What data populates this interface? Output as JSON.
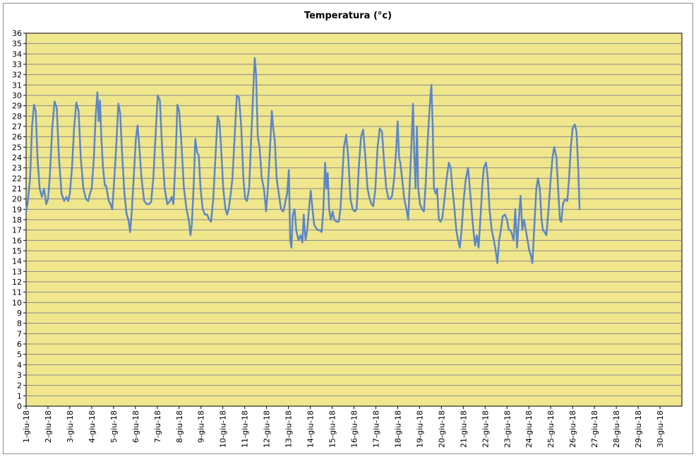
{
  "chart_data": {
    "type": "line",
    "title": "Temperatura (°c)",
    "xlabel": "",
    "ylabel": "",
    "ylim": [
      0,
      36
    ],
    "y_ticks": [
      0,
      1,
      2,
      3,
      4,
      5,
      6,
      7,
      8,
      9,
      10,
      11,
      12,
      13,
      14,
      15,
      16,
      17,
      18,
      19,
      20,
      21,
      22,
      23,
      24,
      25,
      26,
      27,
      28,
      29,
      30,
      31,
      32,
      33,
      34,
      35,
      36
    ],
    "x_ticks": [
      "1-giu-18",
      "2-giu-18",
      "3-giu-18",
      "4-giu-18",
      "5-giu-18",
      "6-giu-18",
      "7-giu-18",
      "8-giu-18",
      "9-giu-18",
      "10-giu-18",
      "11-giu-18",
      "12-giu-18",
      "13-giu-18",
      "14-giu-18",
      "15-giu-18",
      "16-giu-18",
      "17-giu-18",
      "18-giu-18",
      "19-giu-18",
      "20-giu-18",
      "21-giu-18",
      "22-giu-18",
      "23-giu-18",
      "24-giu-18",
      "25-giu-18",
      "26-giu-18",
      "27-giu-18",
      "28-giu-18",
      "29-giu-18",
      "30-giu-18"
    ],
    "grid": true,
    "colors": {
      "plot_background": "#f0e68c",
      "grid": "#8a8a8a",
      "line": "#5b87c8"
    },
    "series": [
      {
        "values": [
          [
            1.0,
            18.8
          ],
          [
            1.08,
            19.8
          ],
          [
            1.18,
            22
          ],
          [
            1.27,
            27
          ],
          [
            1.36,
            29.1
          ],
          [
            1.44,
            28.5
          ],
          [
            1.52,
            24
          ],
          [
            1.62,
            21
          ],
          [
            1.72,
            20.2
          ],
          [
            1.82,
            21
          ],
          [
            1.92,
            19.5
          ],
          [
            2.0,
            20
          ],
          [
            2.08,
            22
          ],
          [
            2.2,
            27
          ],
          [
            2.3,
            29.4
          ],
          [
            2.4,
            28.8
          ],
          [
            2.5,
            24
          ],
          [
            2.62,
            20.5
          ],
          [
            2.74,
            19.8
          ],
          [
            2.84,
            20.2
          ],
          [
            2.92,
            19.8
          ],
          [
            3.0,
            20.5
          ],
          [
            3.1,
            23
          ],
          [
            3.2,
            27
          ],
          [
            3.3,
            29.3
          ],
          [
            3.4,
            28.5
          ],
          [
            3.5,
            24
          ],
          [
            3.62,
            21
          ],
          [
            3.74,
            20
          ],
          [
            3.84,
            19.8
          ],
          [
            3.92,
            20.5
          ],
          [
            4.0,
            21
          ],
          [
            4.1,
            24
          ],
          [
            4.18,
            28
          ],
          [
            4.26,
            30.3
          ],
          [
            4.32,
            27.5
          ],
          [
            4.38,
            29.5
          ],
          [
            4.44,
            26
          ],
          [
            4.52,
            23
          ],
          [
            4.6,
            21.3
          ],
          [
            4.66,
            21.3
          ],
          [
            4.78,
            19.8
          ],
          [
            4.86,
            19.5
          ],
          [
            4.94,
            19
          ],
          [
            5.02,
            21.5
          ],
          [
            5.12,
            25
          ],
          [
            5.22,
            29.2
          ],
          [
            5.3,
            28.3
          ],
          [
            5.4,
            24
          ],
          [
            5.5,
            20.5
          ],
          [
            5.6,
            18.5
          ],
          [
            5.68,
            18
          ],
          [
            5.76,
            16.8
          ],
          [
            5.84,
            19
          ],
          [
            5.92,
            22
          ],
          [
            6.02,
            25.8
          ],
          [
            6.1,
            27.1
          ],
          [
            6.18,
            25
          ],
          [
            6.28,
            22
          ],
          [
            6.4,
            19.8
          ],
          [
            6.52,
            19.5
          ],
          [
            6.62,
            19.5
          ],
          [
            6.72,
            19.7
          ],
          [
            6.82,
            22
          ],
          [
            6.92,
            26
          ],
          [
            7.02,
            30
          ],
          [
            7.12,
            29.5
          ],
          [
            7.22,
            25
          ],
          [
            7.34,
            21
          ],
          [
            7.46,
            19.5
          ],
          [
            7.58,
            19.8
          ],
          [
            7.66,
            20.2
          ],
          [
            7.74,
            19.5
          ],
          [
            7.84,
            24
          ],
          [
            7.92,
            29.1
          ],
          [
            8.0,
            28.5
          ],
          [
            8.1,
            25.5
          ],
          [
            8.22,
            21
          ],
          [
            8.34,
            19
          ],
          [
            8.44,
            18
          ],
          [
            8.52,
            16.5
          ],
          [
            8.58,
            17.5
          ],
          [
            8.66,
            21
          ],
          [
            8.74,
            25.8
          ],
          [
            8.82,
            24.5
          ],
          [
            8.9,
            24.2
          ],
          [
            8.98,
            21
          ],
          [
            9.08,
            19
          ],
          [
            9.18,
            18.5
          ],
          [
            9.28,
            18.5
          ],
          [
            9.38,
            18
          ],
          [
            9.46,
            17.8
          ],
          [
            9.56,
            20
          ],
          [
            9.66,
            24
          ],
          [
            9.76,
            28
          ],
          [
            9.84,
            27.5
          ],
          [
            9.92,
            25
          ],
          [
            10.02,
            21
          ],
          [
            10.12,
            19
          ],
          [
            10.2,
            18.5
          ],
          [
            10.28,
            19.2
          ],
          [
            10.36,
            20.5
          ],
          [
            10.44,
            22
          ],
          [
            10.54,
            26
          ],
          [
            10.64,
            30
          ],
          [
            10.74,
            29.8
          ],
          [
            10.84,
            27
          ],
          [
            10.94,
            22
          ],
          [
            11.02,
            20
          ],
          [
            11.1,
            19.8
          ],
          [
            11.2,
            21
          ],
          [
            11.3,
            26
          ],
          [
            11.4,
            31
          ],
          [
            11.46,
            33.6
          ],
          [
            11.52,
            32
          ],
          [
            11.6,
            26
          ],
          [
            11.68,
            25
          ],
          [
            11.78,
            22
          ],
          [
            11.88,
            21
          ],
          [
            11.98,
            18.8
          ],
          [
            12.06,
            21
          ],
          [
            12.16,
            25
          ],
          [
            12.24,
            28.5
          ],
          [
            12.3,
            27
          ],
          [
            12.38,
            25.5
          ],
          [
            12.46,
            22
          ],
          [
            12.56,
            20.5
          ],
          [
            12.66,
            19
          ],
          [
            12.76,
            18.8
          ],
          [
            12.84,
            19.5
          ],
          [
            12.94,
            20.5
          ],
          [
            13.02,
            22.8
          ],
          [
            13.08,
            16
          ],
          [
            13.14,
            15.3
          ],
          [
            13.2,
            18.5
          ],
          [
            13.28,
            19
          ],
          [
            13.36,
            17
          ],
          [
            13.46,
            16
          ],
          [
            13.56,
            16.5
          ],
          [
            13.64,
            15.8
          ],
          [
            13.7,
            18.5
          ],
          [
            13.78,
            16
          ],
          [
            13.86,
            17
          ],
          [
            13.94,
            19
          ],
          [
            14.02,
            20.8
          ],
          [
            14.1,
            19
          ],
          [
            14.18,
            17.5
          ],
          [
            14.26,
            17.2
          ],
          [
            14.34,
            17
          ],
          [
            14.44,
            17
          ],
          [
            14.52,
            16.8
          ],
          [
            14.6,
            19
          ],
          [
            14.68,
            23.5
          ],
          [
            14.74,
            21
          ],
          [
            14.8,
            22.5
          ],
          [
            14.86,
            19
          ],
          [
            14.94,
            18
          ],
          [
            15.02,
            18.8
          ],
          [
            15.1,
            18
          ],
          [
            15.2,
            17.8
          ],
          [
            15.3,
            17.8
          ],
          [
            15.38,
            19
          ],
          [
            15.46,
            22
          ],
          [
            15.54,
            25
          ],
          [
            15.64,
            26.2
          ],
          [
            15.74,
            24
          ],
          [
            15.84,
            20
          ],
          [
            15.94,
            19
          ],
          [
            16.04,
            18.8
          ],
          [
            16.12,
            19
          ],
          [
            16.22,
            23
          ],
          [
            16.32,
            26
          ],
          [
            16.42,
            26.7
          ],
          [
            16.52,
            24
          ],
          [
            16.62,
            21
          ],
          [
            16.72,
            20
          ],
          [
            16.8,
            19.5
          ],
          [
            16.88,
            19.3
          ],
          [
            16.98,
            21
          ],
          [
            17.08,
            25
          ],
          [
            17.18,
            26.8
          ],
          [
            17.28,
            26.5
          ],
          [
            17.38,
            23.5
          ],
          [
            17.48,
            21
          ],
          [
            17.58,
            20
          ],
          [
            17.66,
            20
          ],
          [
            17.74,
            20.3
          ],
          [
            17.84,
            22
          ],
          [
            17.92,
            24.5
          ],
          [
            18.0,
            27.5
          ],
          [
            18.06,
            24
          ],
          [
            18.12,
            23.5
          ],
          [
            18.2,
            22
          ],
          [
            18.3,
            20
          ],
          [
            18.4,
            19
          ],
          [
            18.48,
            18
          ],
          [
            18.56,
            22
          ],
          [
            18.64,
            26
          ],
          [
            18.7,
            29.2
          ],
          [
            18.76,
            24
          ],
          [
            18.82,
            21
          ],
          [
            18.88,
            27
          ],
          [
            18.94,
            21
          ],
          [
            19.02,
            19.5
          ],
          [
            19.12,
            19
          ],
          [
            19.2,
            18.8
          ],
          [
            19.28,
            21.5
          ],
          [
            19.38,
            26
          ],
          [
            19.46,
            28.8
          ],
          [
            19.54,
            31
          ],
          [
            19.6,
            27
          ],
          [
            19.66,
            21
          ],
          [
            19.74,
            20.5
          ],
          [
            19.8,
            21
          ],
          [
            19.88,
            18
          ],
          [
            19.96,
            17.8
          ],
          [
            20.04,
            18.2
          ],
          [
            20.14,
            20
          ],
          [
            20.24,
            22
          ],
          [
            20.34,
            23.5
          ],
          [
            20.42,
            23
          ],
          [
            20.5,
            21
          ],
          [
            20.6,
            19
          ],
          [
            20.68,
            17
          ],
          [
            20.76,
            16
          ],
          [
            20.84,
            15.3
          ],
          [
            20.92,
            17
          ],
          [
            21.02,
            20
          ],
          [
            21.12,
            22
          ],
          [
            21.22,
            23
          ],
          [
            21.3,
            21
          ],
          [
            21.38,
            19
          ],
          [
            21.46,
            17
          ],
          [
            21.54,
            15.5
          ],
          [
            21.62,
            16.5
          ],
          [
            21.7,
            15.3
          ],
          [
            21.78,
            18
          ],
          [
            21.86,
            21
          ],
          [
            21.94,
            23
          ],
          [
            22.04,
            23.5
          ],
          [
            22.12,
            22
          ],
          [
            22.2,
            19
          ],
          [
            22.3,
            17
          ],
          [
            22.4,
            16
          ],
          [
            22.48,
            15
          ],
          [
            22.56,
            13.8
          ],
          [
            22.64,
            16
          ],
          [
            22.72,
            17
          ],
          [
            22.8,
            18.3
          ],
          [
            22.9,
            18.5
          ],
          [
            23.0,
            18
          ],
          [
            23.08,
            17
          ],
          [
            23.16,
            17
          ],
          [
            23.24,
            16.5
          ],
          [
            23.3,
            16
          ],
          [
            23.38,
            19
          ],
          [
            23.46,
            15.3
          ],
          [
            23.54,
            18
          ],
          [
            23.62,
            20.3
          ],
          [
            23.7,
            17
          ],
          [
            23.78,
            18
          ],
          [
            23.86,
            17
          ],
          [
            23.94,
            16
          ],
          [
            24.02,
            15
          ],
          [
            24.1,
            14.5
          ],
          [
            24.16,
            13.8
          ],
          [
            24.24,
            17
          ],
          [
            24.34,
            21
          ],
          [
            24.42,
            22
          ],
          [
            24.5,
            21
          ],
          [
            24.58,
            18
          ],
          [
            24.64,
            17
          ],
          [
            24.72,
            16.8
          ],
          [
            24.8,
            16.5
          ],
          [
            24.9,
            19
          ],
          [
            25.0,
            22
          ],
          [
            25.08,
            24
          ],
          [
            25.16,
            25
          ],
          [
            25.26,
            24
          ],
          [
            25.34,
            21
          ],
          [
            25.42,
            18
          ],
          [
            25.48,
            17.8
          ],
          [
            25.56,
            19.5
          ],
          [
            25.66,
            20
          ],
          [
            25.76,
            19.8
          ],
          [
            25.84,
            22
          ],
          [
            25.92,
            25
          ],
          [
            26.0,
            26.8
          ],
          [
            26.1,
            27.2
          ],
          [
            26.18,
            26.5
          ],
          [
            26.26,
            23
          ],
          [
            26.32,
            19
          ]
        ]
      }
    ]
  }
}
